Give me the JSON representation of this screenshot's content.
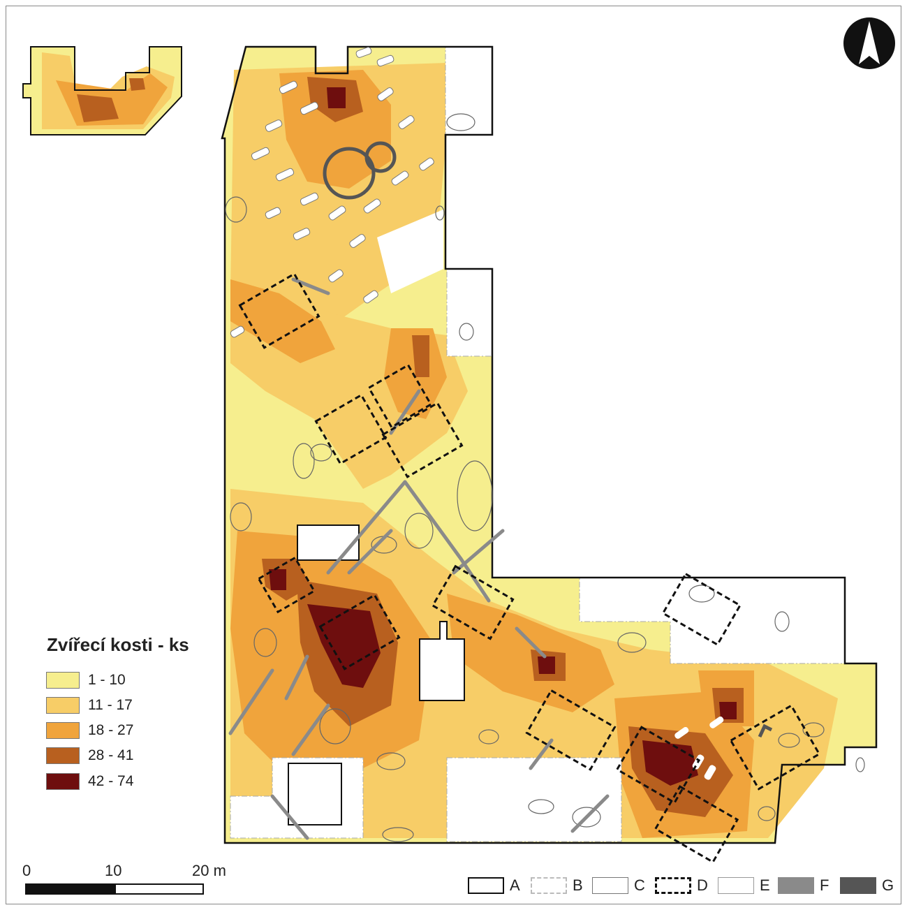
{
  "legend": {
    "title": "Zvířecí kosti - ks",
    "classes": [
      {
        "label": "1 - 10",
        "color": "#f6ee8e"
      },
      {
        "label": "11 - 17",
        "color": "#f7cd67"
      },
      {
        "label": "18 - 27",
        "color": "#f0a43c"
      },
      {
        "label": "28 - 41",
        "color": "#b8601f"
      },
      {
        "label": "42 - 74",
        "color": "#6e0e0e"
      }
    ]
  },
  "scale_bar": {
    "labels": [
      "0",
      "10",
      "20 m"
    ]
  },
  "key": {
    "items": [
      {
        "letter": "A",
        "style": "solid-black"
      },
      {
        "letter": "B",
        "style": "dash-dot-gray"
      },
      {
        "letter": "C",
        "style": "thin-gray"
      },
      {
        "letter": "D",
        "style": "dashed-black"
      },
      {
        "letter": "E",
        "style": "white-fill"
      },
      {
        "letter": "F",
        "style": "gray-fill"
      },
      {
        "letter": "G",
        "style": "dark-fill"
      }
    ]
  },
  "north_arrow": {
    "icon": "north-arrow-icon"
  }
}
